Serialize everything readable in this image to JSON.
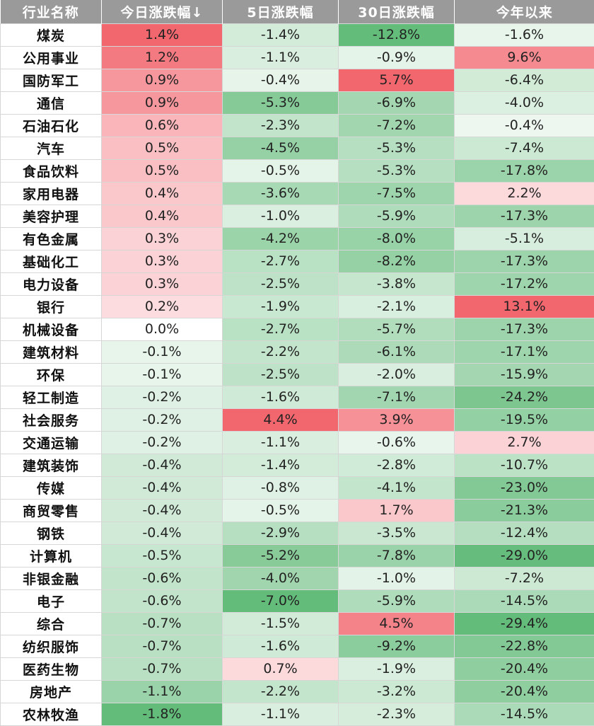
{
  "header": {
    "name": "行业名称",
    "today": "今日涨跌幅↓",
    "d5": "5日涨跌幅",
    "d30": "30日涨跌幅",
    "ytd": "今年以来"
  },
  "colors": {
    "header_bg": "#9a9a9a",
    "positive": "#f2666e",
    "negative": "#5cb874",
    "neutral": "#ffffff"
  },
  "rows": [
    {
      "name": "煤炭",
      "today": "1.4%",
      "d5": "-1.4%",
      "d30": "-12.8%",
      "ytd": "-1.6%"
    },
    {
      "name": "公用事业",
      "today": "1.2%",
      "d5": "-1.1%",
      "d30": "-0.9%",
      "ytd": "9.6%"
    },
    {
      "name": "国防军工",
      "today": "0.9%",
      "d5": "-0.4%",
      "d30": "5.7%",
      "ytd": "-6.4%"
    },
    {
      "name": "通信",
      "today": "0.9%",
      "d5": "-5.3%",
      "d30": "-6.9%",
      "ytd": "-4.0%"
    },
    {
      "name": "石油石化",
      "today": "0.6%",
      "d5": "-2.3%",
      "d30": "-7.2%",
      "ytd": "-0.4%"
    },
    {
      "name": "汽车",
      "today": "0.5%",
      "d5": "-4.5%",
      "d30": "-5.3%",
      "ytd": "-7.4%"
    },
    {
      "name": "食品饮料",
      "today": "0.5%",
      "d5": "-0.5%",
      "d30": "-5.3%",
      "ytd": "-17.8%"
    },
    {
      "name": "家用电器",
      "today": "0.4%",
      "d5": "-3.6%",
      "d30": "-7.5%",
      "ytd": "2.2%"
    },
    {
      "name": "美容护理",
      "today": "0.4%",
      "d5": "-1.0%",
      "d30": "-5.9%",
      "ytd": "-17.3%"
    },
    {
      "name": "有色金属",
      "today": "0.3%",
      "d5": "-4.2%",
      "d30": "-8.0%",
      "ytd": "-5.1%"
    },
    {
      "name": "基础化工",
      "today": "0.3%",
      "d5": "-2.7%",
      "d30": "-8.2%",
      "ytd": "-17.3%"
    },
    {
      "name": "电力设备",
      "today": "0.3%",
      "d5": "-2.5%",
      "d30": "-3.8%",
      "ytd": "-17.2%"
    },
    {
      "name": "银行",
      "today": "0.2%",
      "d5": "-1.9%",
      "d30": "-2.1%",
      "ytd": "13.1%"
    },
    {
      "name": "机械设备",
      "today": "0.0%",
      "d5": "-2.7%",
      "d30": "-5.7%",
      "ytd": "-17.3%"
    },
    {
      "name": "建筑材料",
      "today": "-0.1%",
      "d5": "-2.2%",
      "d30": "-6.1%",
      "ytd": "-17.1%"
    },
    {
      "name": "环保",
      "today": "-0.1%",
      "d5": "-2.5%",
      "d30": "-2.0%",
      "ytd": "-15.9%"
    },
    {
      "name": "轻工制造",
      "today": "-0.2%",
      "d5": "-1.6%",
      "d30": "-7.1%",
      "ytd": "-24.2%"
    },
    {
      "name": "社会服务",
      "today": "-0.2%",
      "d5": "4.4%",
      "d30": "3.9%",
      "ytd": "-19.5%"
    },
    {
      "name": "交通运输",
      "today": "-0.2%",
      "d5": "-1.1%",
      "d30": "-0.6%",
      "ytd": "2.7%"
    },
    {
      "name": "建筑装饰",
      "today": "-0.4%",
      "d5": "-1.4%",
      "d30": "-2.8%",
      "ytd": "-10.7%"
    },
    {
      "name": "传媒",
      "today": "-0.4%",
      "d5": "-0.8%",
      "d30": "-4.1%",
      "ytd": "-23.0%"
    },
    {
      "name": "商贸零售",
      "today": "-0.4%",
      "d5": "-0.5%",
      "d30": "1.7%",
      "ytd": "-21.3%"
    },
    {
      "name": "钢铁",
      "today": "-0.4%",
      "d5": "-2.9%",
      "d30": "-3.5%",
      "ytd": "-12.4%"
    },
    {
      "name": "计算机",
      "today": "-0.5%",
      "d5": "-5.2%",
      "d30": "-7.8%",
      "ytd": "-29.0%"
    },
    {
      "name": "非银金融",
      "today": "-0.6%",
      "d5": "-4.0%",
      "d30": "-1.0%",
      "ytd": "-7.2%"
    },
    {
      "name": "电子",
      "today": "-0.6%",
      "d5": "-7.0%",
      "d30": "-5.9%",
      "ytd": "-14.5%"
    },
    {
      "name": "综合",
      "today": "-0.7%",
      "d5": "-1.5%",
      "d30": "4.5%",
      "ytd": "-29.4%"
    },
    {
      "name": "纺织服饰",
      "today": "-0.7%",
      "d5": "-1.6%",
      "d30": "-9.2%",
      "ytd": "-22.8%"
    },
    {
      "name": "医药生物",
      "today": "-0.7%",
      "d5": "0.7%",
      "d30": "-1.9%",
      "ytd": "-20.4%"
    },
    {
      "name": "房地产",
      "today": "-1.1%",
      "d5": "-2.2%",
      "d30": "-3.2%",
      "ytd": "-20.4%"
    },
    {
      "name": "农林牧渔",
      "today": "-1.8%",
      "d5": "-1.1%",
      "d30": "-2.3%",
      "ytd": "-14.5%"
    }
  ]
}
